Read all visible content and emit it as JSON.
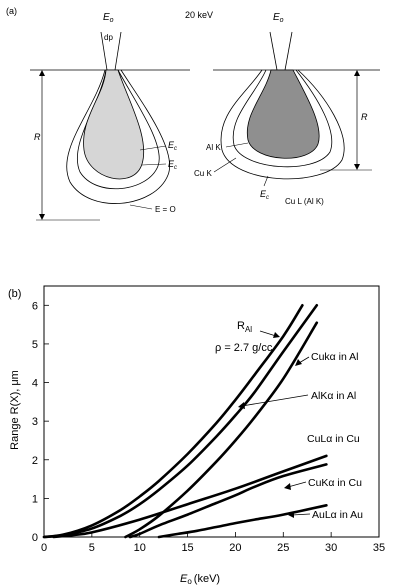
{
  "panel_a": {
    "label": "(a)",
    "energy": "20 keV",
    "beam_left": {
      "name": "E",
      "sub": "o"
    },
    "beam_right": {
      "name": "E",
      "sub": "o"
    },
    "dp": "dp",
    "range_left": "R",
    "range_right": "R",
    "ec_outer": {
      "name": "E",
      "sub": "c"
    },
    "ec_inner": {
      "name": "E",
      "sub": "c"
    },
    "e_zero": "E = O",
    "al_k": "Al K",
    "cu_k": "Cu K",
    "ec_bottom": {
      "name": "E",
      "sub": "c"
    },
    "cu_l": "Cu L (Al K)"
  },
  "panel_b": {
    "label": "(b)",
    "rho_label": "ρ = 2.7 g/cc"
  },
  "chart_data": {
    "type": "line",
    "xlabel": {
      "name": "E",
      "sub": "o",
      "unit": "(keV)"
    },
    "ylabel": "Range R(X), μm",
    "xlim": [
      0,
      35
    ],
    "ylim": [
      0,
      6.5
    ],
    "xticks": [
      "0",
      "5",
      "10",
      "15",
      "20",
      "25",
      "30",
      "35"
    ],
    "yticks": [
      "0",
      "1",
      "2",
      "3",
      "4",
      "5",
      "6"
    ],
    "grid": false,
    "series": [
      {
        "name": "R",
        "sub": "Al",
        "x": [
          0,
          2,
          5,
          8,
          10,
          12,
          15,
          18,
          20,
          22,
          25,
          27
        ],
        "y": [
          0,
          0.06,
          0.3,
          0.7,
          1.05,
          1.45,
          2.15,
          2.95,
          3.55,
          4.2,
          5.2,
          6.0
        ]
      },
      {
        "name": "Cukα in Al",
        "x": [
          0,
          2,
          5,
          8,
          10,
          12,
          15,
          18,
          20,
          22,
          25,
          28.5
        ],
        "y": [
          0,
          0.05,
          0.22,
          0.55,
          0.85,
          1.22,
          1.85,
          2.6,
          3.15,
          3.75,
          4.8,
          6.0
        ]
      },
      {
        "name": "AlKα in Al",
        "x": [
          8.5,
          10,
          12,
          15,
          18,
          20,
          22,
          25,
          28.5
        ],
        "y": [
          0,
          0.2,
          0.55,
          1.2,
          1.95,
          2.5,
          3.1,
          4.1,
          5.55
        ]
      },
      {
        "name": "CuLα in Cu",
        "x": [
          1,
          3,
          5,
          10,
          15,
          20,
          25,
          29.5
        ],
        "y": [
          0,
          0.05,
          0.12,
          0.45,
          0.85,
          1.25,
          1.7,
          2.1
        ]
      },
      {
        "name": "CuKα in Cu",
        "x": [
          9,
          10,
          12,
          15,
          18,
          20,
          22,
          25,
          29.5
        ],
        "y": [
          0,
          0.08,
          0.3,
          0.58,
          0.88,
          1.08,
          1.3,
          1.58,
          1.88
        ]
      },
      {
        "name": "AuLα in Au",
        "x": [
          12,
          14,
          16,
          18,
          20,
          22,
          25,
          29.5
        ],
        "y": [
          0,
          0.08,
          0.16,
          0.26,
          0.36,
          0.45,
          0.58,
          0.82
        ]
      }
    ]
  }
}
